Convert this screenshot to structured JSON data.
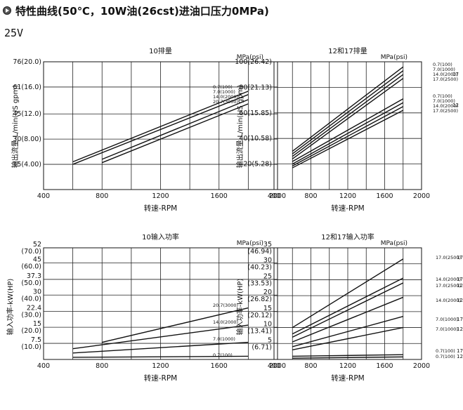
{
  "header": {
    "title": "特性曲线(50℃，10W油(26cst)进油口压力0MPa)"
  },
  "voltage_label": "25V",
  "chart_data": [
    {
      "type": "line",
      "title": "10排量",
      "unit_label": "MPa(psi)",
      "xlabel": "转速-RPM",
      "ylabel": "输出流量-L/min(US gpm)",
      "xlim": [
        400,
        2000
      ],
      "ylim": [
        0,
        76
      ],
      "x_ticks": [
        400,
        800,
        1200,
        1600,
        2000
      ],
      "y_ticks": [
        {
          "value": 15,
          "label": "15(4.00)"
        },
        {
          "value": 30,
          "label": "30(8.00)"
        },
        {
          "value": 45,
          "label": "45(12.0)"
        },
        {
          "value": 61,
          "label": "61(16.0)"
        },
        {
          "value": 76,
          "label": "76(20.0)"
        }
      ],
      "series": [
        {
          "name": "0.7(100)",
          "x": [
            600,
            1800
          ],
          "y": [
            16.5,
            58.5
          ]
        },
        {
          "name": "7.0(1000)",
          "x": [
            600,
            1800
          ],
          "y": [
            15,
            56.5
          ]
        },
        {
          "name": "14.0(2000)",
          "x": [
            800,
            1800
          ],
          "y": [
            18,
            53.5
          ]
        },
        {
          "name": "20.7(3000)",
          "x": [
            800,
            1800
          ],
          "y": [
            16,
            51
          ]
        }
      ]
    },
    {
      "type": "line",
      "title": "12和17排量",
      "unit_label": "MPa(psi)",
      "xlabel": "转速-RPM",
      "ylabel": "输出流量-L/min(US gpm)",
      "xlim": [
        400,
        2000
      ],
      "ylim": [
        0,
        100
      ],
      "x_ticks": [
        400,
        800,
        1200,
        1600,
        2000
      ],
      "y_ticks": [
        {
          "value": 20,
          "label": "20(5.28)"
        },
        {
          "value": 40,
          "label": "40(10.58)"
        },
        {
          "value": 60,
          "label": "60(15.85)"
        },
        {
          "value": 80,
          "label": "80(21.13)"
        },
        {
          "value": 100,
          "label": "100(26.42)"
        }
      ],
      "groups": [
        {
          "label": "17",
          "series": [
            0,
            1,
            2,
            3
          ]
        },
        {
          "label": "12",
          "series": [
            4,
            5,
            6,
            7
          ]
        }
      ],
      "series": [
        {
          "name": "0.7(100)",
          "x": [
            600,
            1800
          ],
          "y": [
            30,
            96
          ]
        },
        {
          "name": "7.0(1000)",
          "x": [
            600,
            1800
          ],
          "y": [
            28,
            93
          ]
        },
        {
          "name": "14.0(2000)",
          "x": [
            600,
            1800
          ],
          "y": [
            26,
            90
          ]
        },
        {
          "name": "17.0(2500)",
          "x": [
            600,
            1800
          ],
          "y": [
            24,
            87
          ]
        },
        {
          "name": "0.7(100)",
          "x": [
            600,
            1800
          ],
          "y": [
            22,
            71
          ]
        },
        {
          "name": "7.0(1000)",
          "x": [
            600,
            1800
          ],
          "y": [
            20,
            68
          ]
        },
        {
          "name": "14.0(2000)",
          "x": [
            600,
            1800
          ],
          "y": [
            18.5,
            65
          ]
        },
        {
          "name": "17.0(2500)",
          "x": [
            600,
            1800
          ],
          "y": [
            17,
            62
          ]
        }
      ]
    },
    {
      "type": "line",
      "title": "10输入功率",
      "unit_label": "MPa(psi)",
      "xlabel": "转速-RPM",
      "ylabel": "输入功率-kW(HP)",
      "xlim": [
        400,
        2000
      ],
      "ylim": [
        0,
        52
      ],
      "x_ticks": [
        400,
        800,
        1200,
        1600,
        2000
      ],
      "y_ticks": [
        {
          "value": 7.5,
          "label": "7.5",
          "sub": "(10.0)"
        },
        {
          "value": 15,
          "label": "15",
          "sub": "(20.0)"
        },
        {
          "value": 22.4,
          "label": "22.4",
          "sub": "(30.0)"
        },
        {
          "value": 30,
          "label": "30",
          "sub": "(40.0)"
        },
        {
          "value": 37.3,
          "label": "37.3",
          "sub": "(50.0)"
        },
        {
          "value": 45,
          "label": "45",
          "sub": "(60.0)"
        },
        {
          "value": 52,
          "label": "52",
          "sub": "(70.0)"
        }
      ],
      "series": [
        {
          "name": "20.7(3000)",
          "x": [
            800,
            1800
          ],
          "y": [
            8,
            24
          ]
        },
        {
          "name": "14.0(2000)",
          "x": [
            600,
            1800
          ],
          "y": [
            5,
            16
          ]
        },
        {
          "name": "7.0(1000)",
          "x": [
            600,
            1800
          ],
          "y": [
            3,
            8
          ]
        },
        {
          "name": "0.7(100)",
          "x": [
            600,
            1800
          ],
          "y": [
            1,
            1.5
          ]
        }
      ]
    },
    {
      "type": "line",
      "title": "12和17输入功率",
      "unit_label": "MPa(psi)",
      "xlabel": "转速-RPM",
      "ylabel": "输入功率-kW(HP)",
      "xlim": [
        400,
        2000
      ],
      "ylim": [
        0,
        35
      ],
      "x_ticks": [
        400,
        800,
        1200,
        1600,
        2000
      ],
      "y_ticks": [
        {
          "value": 5,
          "label": "5",
          "sub": "(6.71)"
        },
        {
          "value": 10,
          "label": "10",
          "sub": "(13.41)"
        },
        {
          "value": 15,
          "label": "15",
          "sub": "(20.12)"
        },
        {
          "value": 20,
          "label": "20",
          "sub": "(26.82)"
        },
        {
          "value": 25,
          "label": "25",
          "sub": "(33.53)"
        },
        {
          "value": 30,
          "label": "30",
          "sub": "(40.23)"
        },
        {
          "value": 35,
          "label": "35",
          "sub": "(46.94)"
        }
      ],
      "series": [
        {
          "name": "17.0(2500)",
          "group": "17",
          "x": [
            600,
            1800
          ],
          "y": [
            10,
            31.5
          ]
        },
        {
          "name": "14.0(2000)",
          "group": "17",
          "x": [
            600,
            1800
          ],
          "y": [
            8,
            25.5
          ]
        },
        {
          "name": "17.0(2500)",
          "group": "12",
          "x": [
            600,
            1800
          ],
          "y": [
            7,
            24
          ]
        },
        {
          "name": "14.0(2000)",
          "group": "12",
          "x": [
            600,
            1800
          ],
          "y": [
            5.5,
            19.5
          ]
        },
        {
          "name": "7.0(1000)",
          "group": "17",
          "x": [
            600,
            1800
          ],
          "y": [
            4,
            13.5
          ]
        },
        {
          "name": "7.0(1000)",
          "group": "12",
          "x": [
            600,
            1800
          ],
          "y": [
            3,
            10
          ]
        },
        {
          "name": "0.7(100)",
          "group": "17",
          "x": [
            600,
            1800
          ],
          "y": [
            1,
            1.5
          ]
        },
        {
          "name": "0.7(100)",
          "group": "12",
          "x": [
            600,
            1800
          ],
          "y": [
            0.4,
            0.8
          ]
        }
      ]
    }
  ]
}
